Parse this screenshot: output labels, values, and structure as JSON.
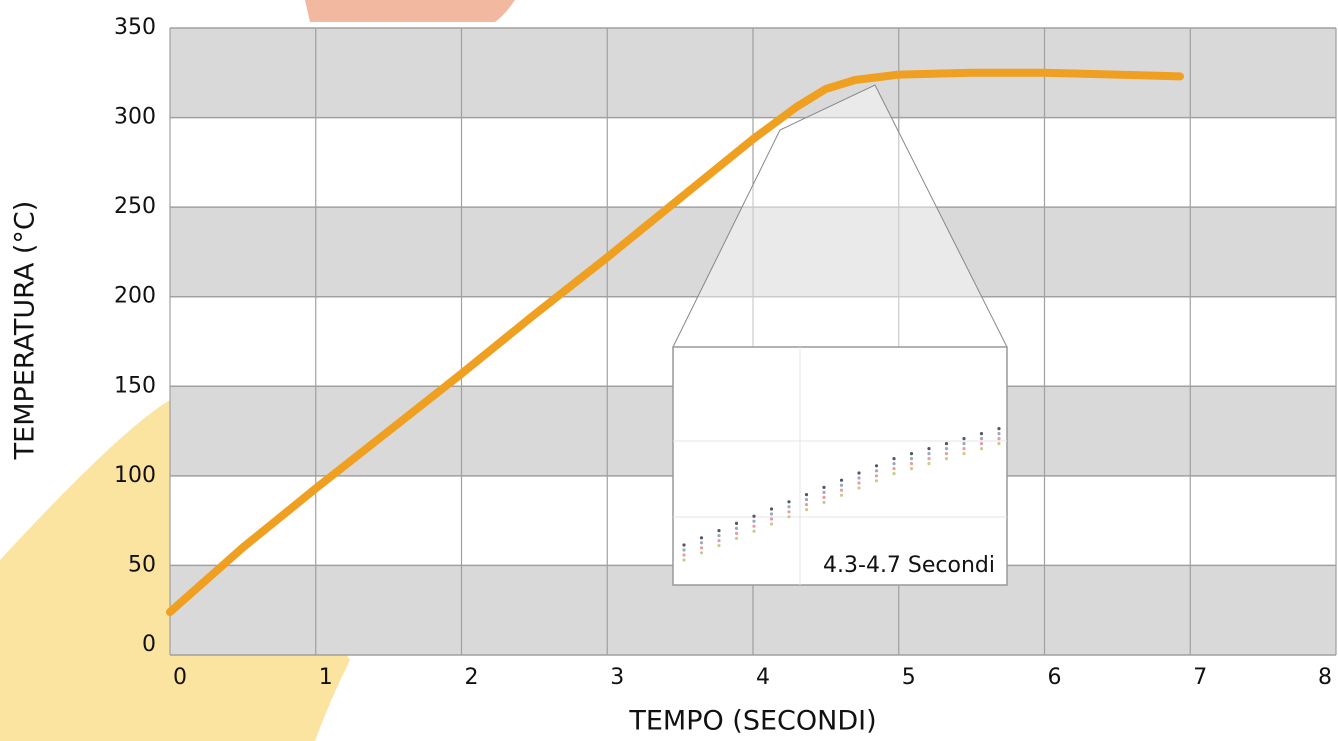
{
  "chart_data": {
    "type": "line",
    "x_label": "TEMPO (SECONDI)",
    "y_label": "TEMPERATURA (°C)",
    "x": [
      0,
      0.5,
      1,
      1.5,
      2,
      2.5,
      3,
      3.5,
      4,
      4.3,
      4.5,
      4.7,
      5,
      5.5,
      6,
      6.5,
      6.93
    ],
    "series": [
      {
        "color": "#f0a020",
        "values": [
          24,
          60,
          93,
          125,
          157,
          190,
          222,
          255,
          288,
          306,
          316,
          321,
          324,
          325,
          325,
          324,
          323
        ]
      }
    ],
    "xlim": [
      0,
      8
    ],
    "xticks": [
      0,
      1,
      2,
      3,
      4,
      5,
      6,
      7,
      8
    ],
    "ylim": [
      0,
      350
    ],
    "yticks": [
      0,
      50,
      100,
      150,
      200,
      250,
      300,
      350
    ],
    "grid": true,
    "annotation": "4.3-4.7 Secondi"
  }
}
